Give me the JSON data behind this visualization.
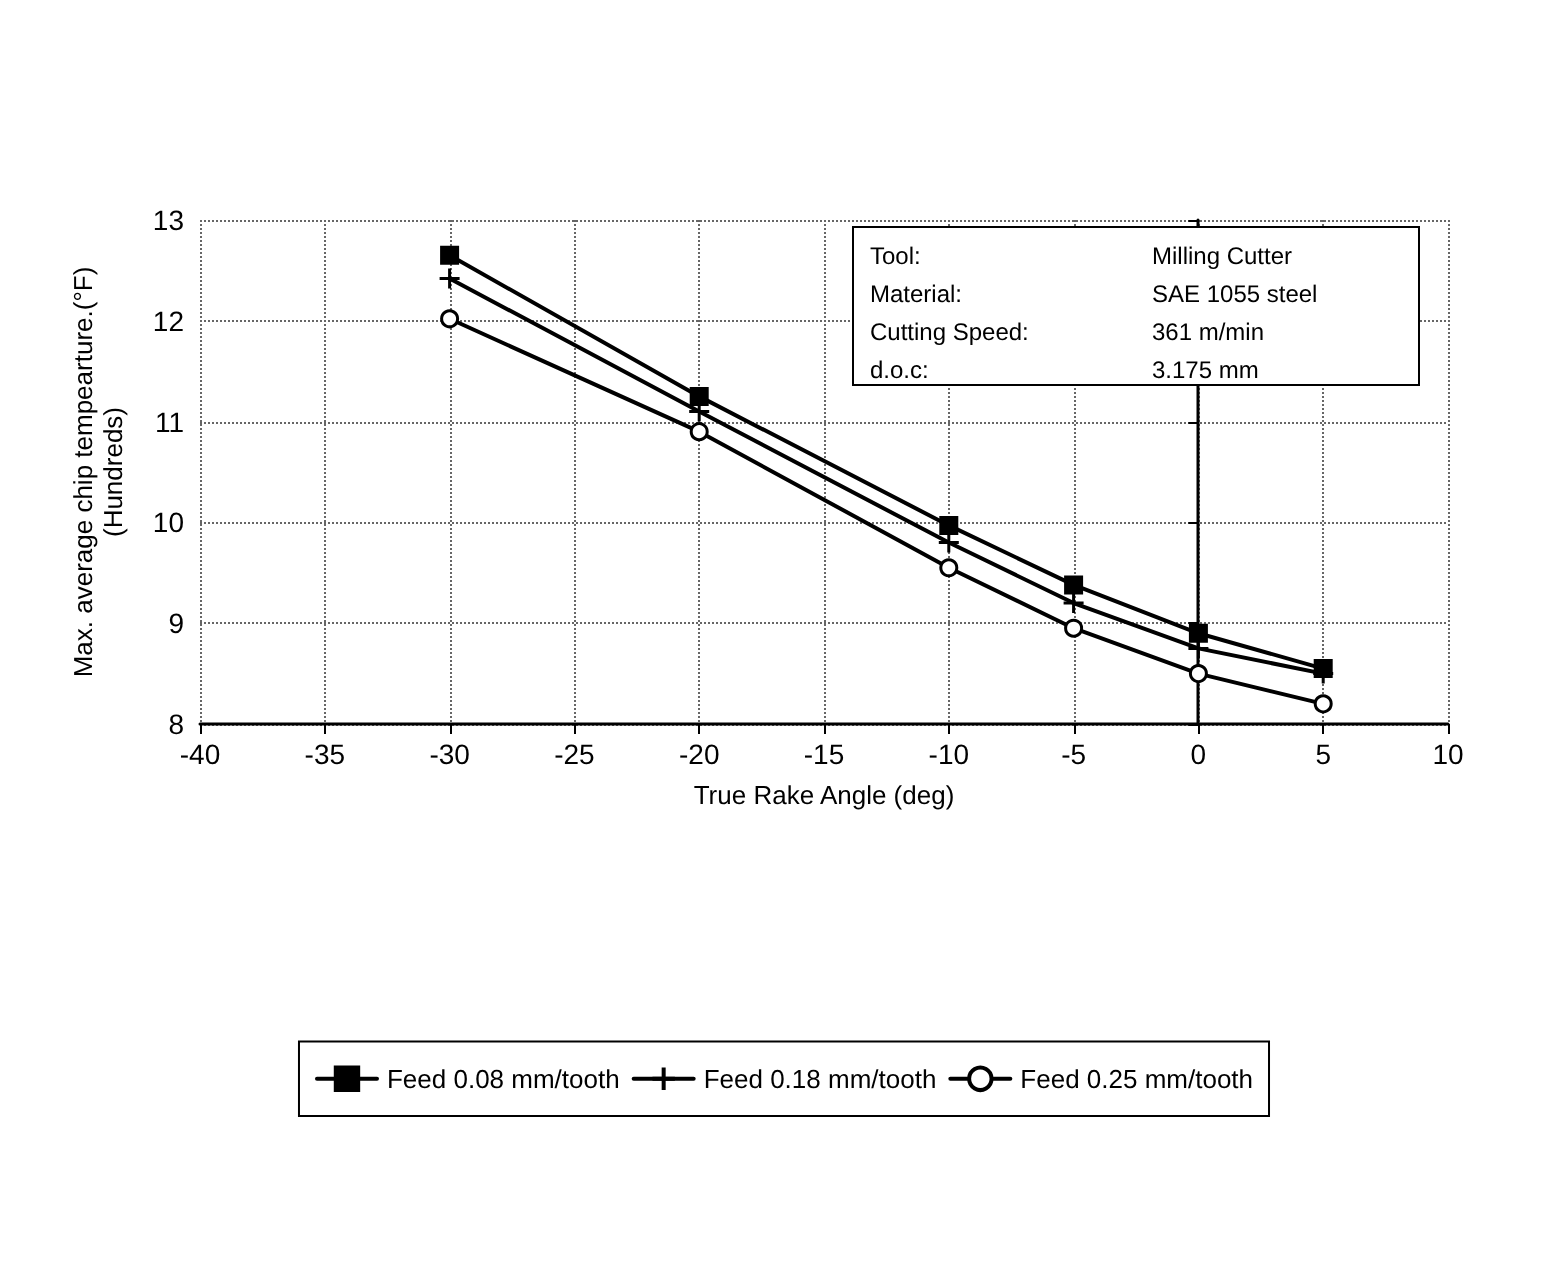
{
  "chart_data": {
    "type": "line",
    "xlabel": "True Rake Angle (deg)",
    "ylabel": "Max. average chip tempearture.(°F)\n(Hundreds)",
    "x": [
      -30,
      -20,
      -10,
      -5,
      0,
      5
    ],
    "series": [
      {
        "name": "Feed 0.08 mm/tooth",
        "color": "#000000",
        "marker": "square",
        "values": [
          12.65,
          11.25,
          9.97,
          9.38,
          8.9,
          8.55
        ]
      },
      {
        "name": "Feed 0.18 mm/tooth",
        "color": "#000000",
        "marker": "cross",
        "values": [
          12.42,
          11.1,
          9.8,
          9.2,
          8.75,
          8.5
        ]
      },
      {
        "name": "Feed 0.25 mm/tooth",
        "color": "#000000",
        "marker": "circle",
        "values": [
          12.02,
          10.9,
          9.55,
          8.95,
          8.5,
          8.2
        ]
      }
    ],
    "xlim": [
      -40,
      10
    ],
    "xticks": [
      -40,
      -35,
      -30,
      -25,
      -20,
      -15,
      -10,
      -5,
      0,
      5,
      10
    ],
    "ylim": [
      8,
      13
    ],
    "yticks": [
      8,
      9,
      10,
      11,
      12,
      13
    ],
    "grid": true,
    "legend": "bottom",
    "line_style": "solid",
    "annotations": [
      "Tool:\tMilling Cutter",
      "Material:\tSAE 1055 steel",
      "Cutting Speed:\t361 m/min",
      "d.o.c:\t3.175 mm"
    ]
  }
}
